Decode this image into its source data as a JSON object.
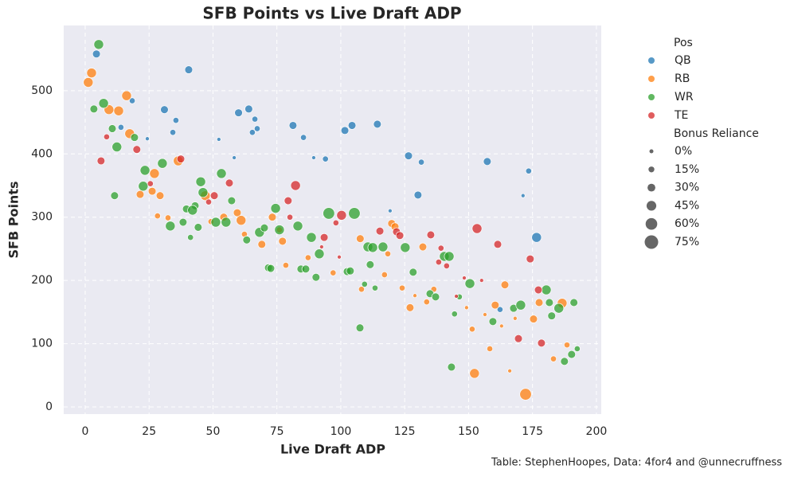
{
  "chart_data": {
    "type": "scatter",
    "title": "SFB Points vs Live Draft ADP",
    "xlabel": "Live Draft ADP",
    "ylabel": "SFB Points",
    "caption": "Table: StephenHoopes, Data: 4for4 and @unnecruffness",
    "legend_title": "Pos",
    "size_legend": {
      "title": "Bonus Reliance",
      "values": [
        0,
        15,
        30,
        45,
        60,
        75
      ],
      "labels": [
        "0%",
        "15%",
        "30%",
        "45%",
        "60%",
        "75%"
      ]
    },
    "xlim": [
      -8.4,
      201.9
    ],
    "ylim": [
      -11.3,
      603
    ],
    "xticks": [
      0,
      25,
      50,
      75,
      100,
      125,
      150,
      175,
      200
    ],
    "yticks": [
      0,
      100,
      200,
      300,
      400,
      500
    ],
    "grid": true,
    "series": [
      {
        "name": "QB",
        "color": "#1f77b4",
        "x": [
          4.4,
          40.5,
          18.4,
          31,
          14,
          35.5,
          34.3,
          24.3,
          64,
          60,
          66.4,
          67.3,
          65.4,
          52.3,
          81.3,
          85.4,
          58.3,
          89.4,
          94,
          101.6,
          104.4,
          114.3,
          126.5,
          131.5,
          157.3,
          173.5,
          130.2,
          171.3,
          176.6,
          119.3,
          162.3
        ],
        "values": [
          558,
          533,
          484,
          470,
          442,
          453,
          434,
          424,
          471,
          465,
          455,
          440,
          434,
          423,
          445,
          426,
          394,
          394,
          392,
          437,
          445,
          447,
          397,
          387,
          388,
          373,
          335,
          334,
          268,
          310,
          154
        ],
        "sizes": [
          30,
          30,
          15,
          30,
          15,
          15,
          15,
          0,
          30,
          30,
          15,
          15,
          15,
          0,
          30,
          15,
          0,
          0,
          15,
          30,
          30,
          30,
          30,
          15,
          30,
          15,
          30,
          0,
          45,
          0,
          15
        ]
      },
      {
        "name": "RB",
        "color": "#ff7f0e",
        "x": [
          2.5,
          1.2,
          9.3,
          13.1,
          16.2,
          17.4,
          36.4,
          27.1,
          21.5,
          29.3,
          26.2,
          28.3,
          32.4,
          47,
          49.2,
          59.5,
          61,
          62.3,
          54.2,
          73.2,
          76,
          77.2,
          69.1,
          78.5,
          87.2,
          97,
          107.6,
          108.1,
          119.9,
          121.2,
          118.4,
          117.1,
          124,
          129,
          127.1,
          132.1,
          133.6,
          136.4,
          149.2,
          152.3,
          151.4,
          156.4,
          158.3,
          160.4,
          162.9,
          164.2,
          166.1,
          168.2,
          172.3,
          175.4,
          177.6,
          186.6,
          183.2,
          188.5
        ],
        "values": [
          528,
          513,
          470,
          468,
          492,
          432,
          389,
          369,
          336,
          334,
          341,
          302,
          299,
          334,
          293,
          307,
          295,
          273,
          300,
          300,
          280,
          262,
          257,
          224,
          236,
          212,
          266,
          186,
          290,
          285,
          242,
          209,
          188,
          176,
          157,
          253,
          166,
          186,
          157,
          53,
          123,
          146,
          92,
          161,
          128,
          193,
          57,
          140,
          20,
          139,
          165,
          164,
          76,
          98
        ],
        "sizes": [
          45,
          45,
          45,
          45,
          45,
          45,
          45,
          45,
          30,
          30,
          30,
          15,
          15,
          45,
          15,
          30,
          45,
          15,
          30,
          30,
          15,
          30,
          30,
          15,
          15,
          15,
          30,
          15,
          30,
          30,
          15,
          15,
          15,
          0,
          30,
          30,
          15,
          15,
          0,
          45,
          15,
          0,
          15,
          30,
          0,
          30,
          0,
          0,
          60,
          30,
          30,
          45,
          15,
          15
        ]
      },
      {
        "name": "WR",
        "color": "#2ca02c",
        "x": [
          5.3,
          7.2,
          3.4,
          10.6,
          12.4,
          19.3,
          11.5,
          23.4,
          30.2,
          22.7,
          45.2,
          46.1,
          53.3,
          57.3,
          43,
          39.6,
          42,
          38.3,
          33.3,
          44.2,
          41.2,
          51.1,
          55.1,
          63.2,
          68.2,
          70.1,
          74.5,
          76,
          83.2,
          88.5,
          91.6,
          71.7,
          72.6,
          84.4,
          86.3,
          90.3,
          95.3,
          105.3,
          102.5,
          103.7,
          110.6,
          112.5,
          116.5,
          125.2,
          111.5,
          113.4,
          109.3,
          107.5,
          128.3,
          134.9,
          137.1,
          140.5,
          142.4,
          146.4,
          144.5,
          150.5,
          159.5,
          167.6,
          170.4,
          180.4,
          181.6,
          182.5,
          185.3,
          191.2,
          190.3,
          192.5,
          187.5,
          143.3
        ],
        "values": [
          573,
          480,
          471,
          440,
          411,
          426,
          334,
          374,
          385,
          349,
          356,
          339,
          369,
          326,
          318,
          313,
          311,
          292,
          286,
          284,
          268,
          292,
          292,
          264,
          276,
          283,
          314,
          280,
          286,
          268,
          242,
          220,
          219,
          218,
          218,
          205,
          306,
          306,
          214,
          215,
          253,
          252,
          253,
          252,
          225,
          188,
          194,
          125,
          213,
          179,
          174,
          238,
          238,
          174,
          147,
          195,
          135,
          156,
          161,
          185,
          165,
          144,
          156,
          165,
          83,
          92,
          72,
          63
        ],
        "sizes": [
          45,
          45,
          30,
          30,
          45,
          30,
          30,
          45,
          45,
          45,
          45,
          45,
          45,
          30,
          30,
          30,
          45,
          30,
          45,
          30,
          15,
          45,
          45,
          30,
          45,
          30,
          45,
          45,
          45,
          45,
          45,
          30,
          30,
          30,
          30,
          30,
          60,
          60,
          30,
          30,
          45,
          45,
          45,
          45,
          30,
          15,
          15,
          30,
          30,
          30,
          30,
          45,
          45,
          15,
          15,
          45,
          30,
          30,
          45,
          45,
          30,
          30,
          45,
          30,
          30,
          15,
          30,
          30
        ]
      },
      {
        "name": "TE",
        "color": "#d62728",
        "x": [
          8.4,
          20.2,
          6.2,
          25.5,
          37.4,
          56.4,
          50.5,
          48.3,
          79.4,
          82.3,
          80.1,
          93.5,
          100.3,
          98.1,
          99.4,
          92.5,
          115.3,
          121.8,
          123.1,
          135.2,
          139.2,
          138.3,
          141.4,
          145.2,
          148.3,
          155.1,
          153.3,
          161.4,
          174.1,
          177.3,
          169.5,
          178.5
        ],
        "values": [
          427,
          407,
          389,
          353,
          392,
          354,
          334,
          324,
          326,
          350,
          300,
          268,
          303,
          291,
          237,
          253,
          278,
          277,
          271,
          272,
          251,
          229,
          223,
          175,
          204,
          200,
          282,
          257,
          234,
          185,
          108,
          101
        ],
        "sizes": [
          15,
          30,
          30,
          15,
          30,
          30,
          30,
          15,
          30,
          45,
          15,
          30,
          45,
          15,
          0,
          0,
          30,
          30,
          30,
          30,
          15,
          15,
          15,
          0,
          0,
          0,
          45,
          30,
          30,
          30,
          30,
          30
        ]
      }
    ]
  }
}
